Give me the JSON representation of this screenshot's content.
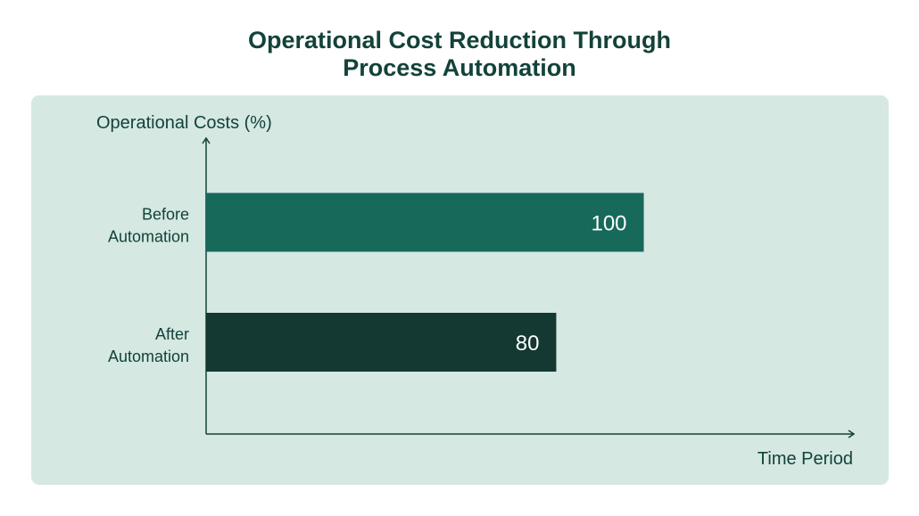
{
  "chart_data": {
    "type": "bar",
    "orientation": "horizontal",
    "title_lines": [
      "Operational Cost Reduction Through",
      "Process Automation"
    ],
    "ylabel": "Operational Costs  (%)",
    "xlabel": "Time Period",
    "categories": [
      {
        "lines": [
          "Before",
          "Automation"
        ]
      },
      {
        "lines": [
          "After",
          "Automation"
        ]
      }
    ],
    "values": [
      100,
      80
    ],
    "value_labels": [
      "100",
      "80"
    ],
    "xlim": [
      0,
      148
    ],
    "bar_colors": [
      "#17695a",
      "#143832"
    ],
    "value_label_color": "#ffffff",
    "grid": false,
    "legend": "none"
  },
  "colors": {
    "panel_background": "#d5e8e2",
    "text": "#13423a",
    "axis": "#13423a"
  }
}
